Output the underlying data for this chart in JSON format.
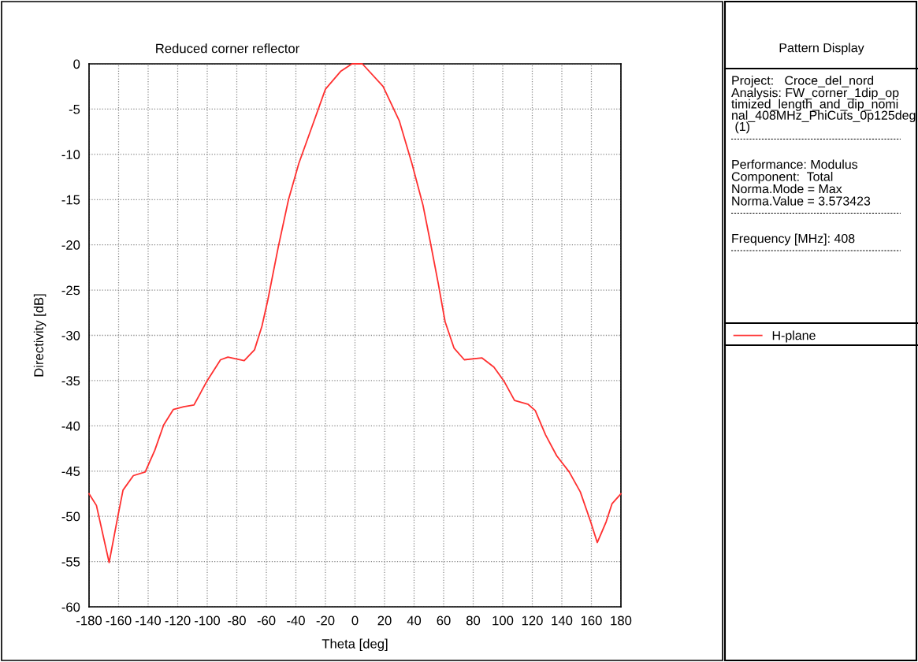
{
  "chart_data": {
    "type": "line",
    "title": "Reduced corner reflector",
    "xlabel": "Theta [deg]",
    "ylabel": "Directivity [dB]",
    "x": [
      -180,
      -175,
      -166.4,
      -160.5,
      -157,
      -150,
      -142,
      -135.5,
      -129.5,
      -123,
      -116,
      -109,
      -100,
      -91,
      -86,
      -75,
      -68,
      -63,
      -59,
      -52,
      -45,
      -38,
      -29,
      -20,
      -9.5,
      -2,
      0,
      5,
      19,
      30,
      38.5,
      46,
      51,
      56.5,
      61,
      67,
      74,
      86,
      94,
      101,
      108,
      117,
      122,
      129,
      136.5,
      145,
      152.5,
      159.5,
      164,
      170,
      174,
      180
    ],
    "series": [
      {
        "name": "H-plane",
        "color": "#ff3030",
        "values": [
          -47.5,
          -48.8,
          -55.1,
          -50,
          -47.1,
          -45.5,
          -45.1,
          -42.7,
          -39.9,
          -38.2,
          -37.9,
          -37.7,
          -35.0,
          -32.7,
          -32.4,
          -32.8,
          -31.6,
          -29.0,
          -26.1,
          -20.3,
          -15.0,
          -11.0,
          -6.9,
          -2.8,
          -0.8,
          0,
          0,
          0,
          -2.5,
          -6.3,
          -11.0,
          -15.6,
          -19.7,
          -24.4,
          -28.5,
          -31.4,
          -32.7,
          -32.5,
          -33.5,
          -35.1,
          -37.2,
          -37.6,
          -38.3,
          -41.0,
          -43.3,
          -45.1,
          -47.3,
          -50.6,
          -52.9,
          -50.6,
          -48.6,
          -47.5
        ]
      }
    ],
    "xlim": [
      -180,
      180
    ],
    "ylim": [
      -60,
      0
    ],
    "xticks": [
      -180,
      -160,
      -140,
      -120,
      -100,
      -80,
      -60,
      -40,
      -20,
      0,
      20,
      40,
      60,
      80,
      100,
      120,
      140,
      160,
      180
    ],
    "yticks": [
      -60,
      -55,
      -50,
      -45,
      -40,
      -35,
      -30,
      -25,
      -20,
      -15,
      -10,
      -5,
      0
    ],
    "grid": true,
    "legend": "right",
    "line_style": "solid",
    "marker": "none",
    "annotations": [
      "Pattern Display",
      "Project:   Croce_del_nord",
      "Analysis: FW_corner_1dip_optimized_length_and_dip_nominal_408MHz_PhiCuts_0p125deg (1)",
      "Performance: Modulus",
      "Component:  Total",
      "Norma.Mode = Max",
      "Norma.Value = 3.573423",
      "Frequency [MHz]: 408"
    ]
  }
}
